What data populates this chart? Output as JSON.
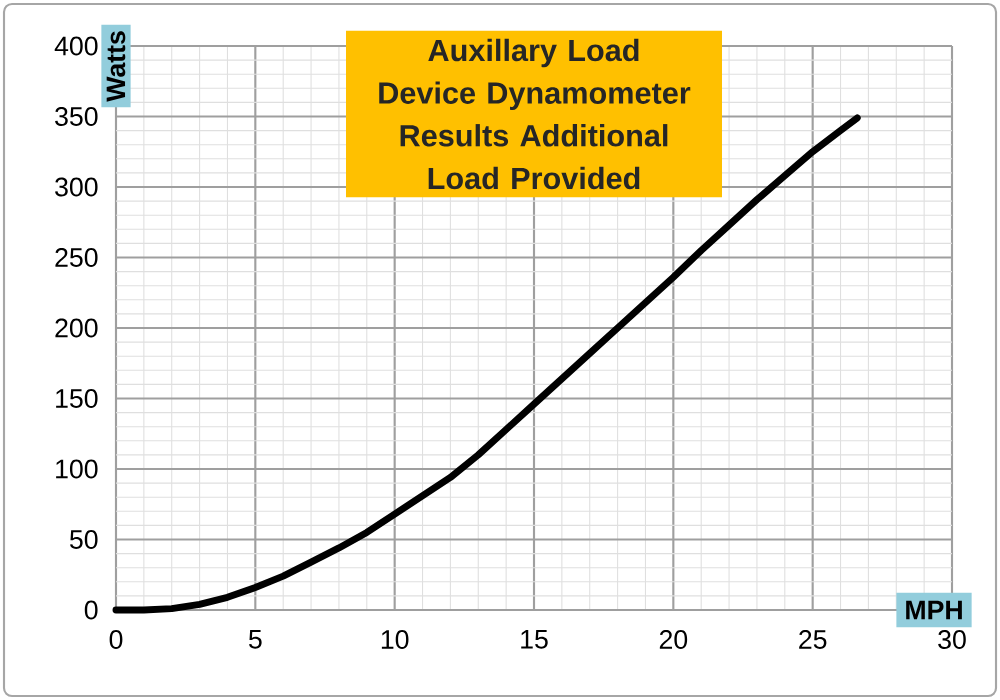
{
  "chart_data": {
    "type": "line",
    "title": "Auxillary Load Device Dynamometer Results Additional Load  Provided",
    "xlabel": "MPH",
    "ylabel": "Watts",
    "series": [
      {
        "color": "#000000",
        "x": [
          0,
          1,
          2,
          3,
          4,
          5,
          6,
          7,
          8,
          9,
          10,
          11,
          12,
          13,
          14,
          15,
          16,
          17,
          18,
          19,
          20,
          21,
          22,
          23,
          24,
          25,
          26,
          26.6
        ],
        "values": [
          0,
          0,
          1,
          4,
          9,
          16,
          24,
          34,
          44,
          55,
          68,
          81,
          94,
          110,
          128,
          146,
          164,
          182,
          200,
          218,
          236,
          255,
          273,
          291,
          308,
          325,
          340,
          349
        ]
      }
    ],
    "xlim": [
      0,
      30
    ],
    "ylim": [
      0,
      400
    ],
    "xticks": [
      0,
      5,
      10,
      15,
      20,
      25,
      30
    ],
    "yticks": [
      0,
      50,
      100,
      150,
      200,
      250,
      300,
      350,
      400
    ],
    "grid": true,
    "marker": "none",
    "line_style": "solid"
  }
}
